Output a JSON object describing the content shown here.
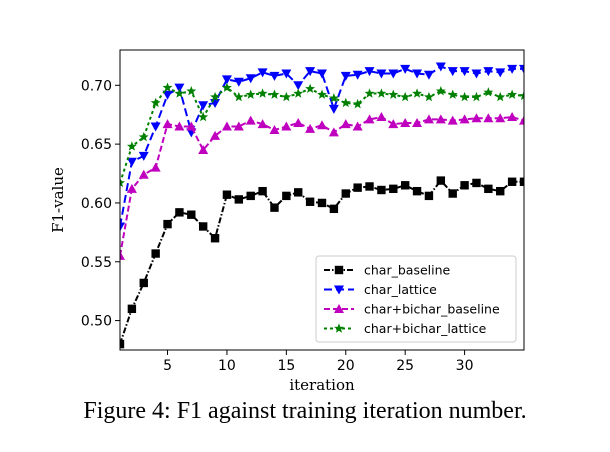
{
  "caption": "Figure 4: F1 against training iteration number.",
  "chart_data": {
    "type": "line",
    "xlabel": "iteration",
    "ylabel": "F1-value",
    "xlim": [
      1,
      35
    ],
    "ylim": [
      0.475,
      0.73
    ],
    "xticks": [
      5,
      10,
      15,
      20,
      25,
      30
    ],
    "yticks": [
      0.5,
      0.55,
      0.6,
      0.65,
      0.7
    ],
    "ytick_labels": [
      "0.50",
      "0.55",
      "0.60",
      "0.65",
      "0.70"
    ],
    "grid": false,
    "legend_position": "lower right",
    "x": [
      1,
      2,
      3,
      4,
      5,
      6,
      7,
      8,
      9,
      10,
      11,
      12,
      13,
      14,
      15,
      16,
      17,
      18,
      19,
      20,
      21,
      22,
      23,
      24,
      25,
      26,
      27,
      28,
      29,
      30,
      31,
      32,
      33,
      34,
      35
    ],
    "series": [
      {
        "name": "char_baseline",
        "color": "#000000",
        "marker": "square",
        "dash": "6,2,1.5,2",
        "values": [
          0.48,
          0.51,
          0.532,
          0.557,
          0.582,
          0.592,
          0.59,
          0.58,
          0.57,
          0.607,
          0.603,
          0.606,
          0.61,
          0.596,
          0.606,
          0.609,
          0.601,
          0.6,
          0.595,
          0.608,
          0.613,
          0.614,
          0.611,
          0.612,
          0.615,
          0.61,
          0.606,
          0.619,
          0.608,
          0.615,
          0.617,
          0.612,
          0.61,
          0.618,
          0.618
        ]
      },
      {
        "name": "char_lattice",
        "color": "#0000ff",
        "marker": "triangle-down",
        "dash": "8,4",
        "values": [
          0.58,
          0.635,
          0.64,
          0.665,
          0.692,
          0.698,
          0.66,
          0.683,
          0.685,
          0.705,
          0.703,
          0.706,
          0.711,
          0.708,
          0.71,
          0.7,
          0.712,
          0.71,
          0.68,
          0.708,
          0.709,
          0.712,
          0.71,
          0.71,
          0.714,
          0.71,
          0.709,
          0.716,
          0.712,
          0.712,
          0.71,
          0.712,
          0.711,
          0.714,
          0.714
        ]
      },
      {
        "name": "char+bichar_baseline",
        "color": "#bf00bf",
        "marker": "triangle-up",
        "dash": "6,3",
        "values": [
          0.555,
          0.612,
          0.624,
          0.63,
          0.667,
          0.665,
          0.665,
          0.645,
          0.657,
          0.665,
          0.665,
          0.67,
          0.667,
          0.662,
          0.665,
          0.668,
          0.663,
          0.666,
          0.66,
          0.667,
          0.665,
          0.671,
          0.673,
          0.667,
          0.668,
          0.668,
          0.671,
          0.671,
          0.67,
          0.671,
          0.672,
          0.672,
          0.672,
          0.673,
          0.67
        ]
      },
      {
        "name": "char+bichar_lattice",
        "color": "#008000",
        "marker": "star",
        "dash": "3,3",
        "values": [
          0.617,
          0.648,
          0.656,
          0.685,
          0.698,
          0.693,
          0.695,
          0.673,
          0.69,
          0.698,
          0.69,
          0.692,
          0.693,
          0.692,
          0.69,
          0.693,
          0.697,
          0.692,
          0.689,
          0.685,
          0.684,
          0.693,
          0.693,
          0.692,
          0.69,
          0.693,
          0.69,
          0.695,
          0.692,
          0.69,
          0.69,
          0.694,
          0.69,
          0.692,
          0.691
        ]
      }
    ]
  }
}
